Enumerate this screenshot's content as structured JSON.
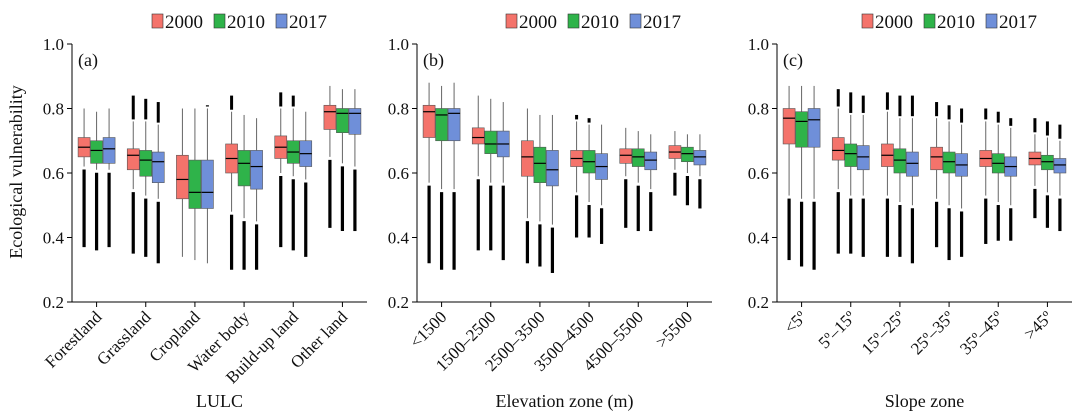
{
  "ylabel": "Ecological vulnerability",
  "colors": {
    "2000": "#f4736b",
    "2010": "#2fb34a",
    "2017": "#6f8fd9"
  },
  "chart_data": [
    {
      "type": "box",
      "panel_label": "(a)",
      "xlabel": "LULC",
      "ylabel": "Ecological vulnerability",
      "ylim": [
        0.2,
        1.0
      ],
      "yticks": [
        "0.2",
        "0.4",
        "0.6",
        "0.8",
        "1.0"
      ],
      "legend": [
        "2000",
        "2010",
        "2017"
      ],
      "legend_position": "top",
      "categories": [
        "Forestland",
        "Grassland",
        "Cropland",
        "Water body",
        "Build-up land",
        "Other land"
      ],
      "series": [
        {
          "name": "2000",
          "boxes": [
            {
              "whislo": 0.62,
              "q1": 0.65,
              "med": 0.68,
              "q3": 0.71,
              "whishi": 0.8,
              "outlier_lo": 0.37,
              "outlier_hi": null
            },
            {
              "whislo": 0.55,
              "q1": 0.61,
              "med": 0.655,
              "q3": 0.675,
              "whishi": 0.76,
              "outlier_lo": 0.35,
              "outlier_hi": 0.84
            },
            {
              "whislo": 0.34,
              "q1": 0.52,
              "med": 0.58,
              "q3": 0.655,
              "whishi": 0.8,
              "outlier_lo": null,
              "outlier_hi": null
            },
            {
              "whislo": 0.48,
              "q1": 0.6,
              "med": 0.645,
              "q3": 0.69,
              "whishi": 0.79,
              "outlier_lo": 0.3,
              "outlier_hi": 0.84
            },
            {
              "whislo": 0.6,
              "q1": 0.645,
              "med": 0.68,
              "q3": 0.715,
              "whishi": 0.8,
              "outlier_lo": 0.37,
              "outlier_hi": 0.85
            },
            {
              "whislo": 0.65,
              "q1": 0.735,
              "med": 0.79,
              "q3": 0.81,
              "whishi": 0.87,
              "outlier_lo": 0.43,
              "outlier_hi": null
            }
          ]
        },
        {
          "name": "2010",
          "boxes": [
            {
              "whislo": 0.61,
              "q1": 0.63,
              "med": 0.67,
              "q3": 0.7,
              "whishi": 0.79,
              "outlier_lo": 0.36,
              "outlier_hi": null
            },
            {
              "whislo": 0.53,
              "q1": 0.59,
              "med": 0.64,
              "q3": 0.67,
              "whishi": 0.76,
              "outlier_lo": 0.34,
              "outlier_hi": 0.83
            },
            {
              "whislo": 0.33,
              "q1": 0.49,
              "med": 0.54,
              "q3": 0.64,
              "whishi": 0.8,
              "outlier_lo": null,
              "outlier_hi": null
            },
            {
              "whislo": 0.46,
              "q1": 0.56,
              "med": 0.63,
              "q3": 0.67,
              "whishi": 0.78,
              "outlier_lo": 0.3,
              "outlier_hi": null
            },
            {
              "whislo": 0.59,
              "q1": 0.63,
              "med": 0.665,
              "q3": 0.7,
              "whishi": 0.8,
              "outlier_lo": 0.36,
              "outlier_hi": 0.84
            },
            {
              "whislo": 0.63,
              "q1": 0.725,
              "med": 0.785,
              "q3": 0.8,
              "whishi": 0.86,
              "outlier_lo": 0.42,
              "outlier_hi": null
            }
          ]
        },
        {
          "name": "2017",
          "boxes": [
            {
              "whislo": 0.61,
              "q1": 0.63,
              "med": 0.675,
              "q3": 0.71,
              "whishi": 0.8,
              "outlier_lo": 0.37,
              "outlier_hi": null
            },
            {
              "whislo": 0.52,
              "q1": 0.57,
              "med": 0.635,
              "q3": 0.665,
              "whishi": 0.75,
              "outlier_lo": 0.32,
              "outlier_hi": 0.82
            },
            {
              "whislo": 0.32,
              "q1": 0.49,
              "med": 0.54,
              "q3": 0.64,
              "whishi": 0.8,
              "outlier_lo": null,
              "outlier_hi": 0.81
            },
            {
              "whislo": 0.45,
              "q1": 0.55,
              "med": 0.62,
              "q3": 0.67,
              "whishi": 0.77,
              "outlier_lo": 0.3,
              "outlier_hi": null
            },
            {
              "whislo": 0.58,
              "q1": 0.62,
              "med": 0.66,
              "q3": 0.7,
              "whishi": 0.79,
              "outlier_lo": 0.34,
              "outlier_hi": null
            },
            {
              "whislo": 0.62,
              "q1": 0.72,
              "med": 0.785,
              "q3": 0.8,
              "whishi": 0.86,
              "outlier_lo": 0.42,
              "outlier_hi": null
            }
          ]
        }
      ]
    },
    {
      "type": "box",
      "panel_label": "(b)",
      "xlabel": "Elevation zone (m)",
      "ylabel": "",
      "ylim": [
        0.2,
        1.0
      ],
      "yticks": [
        "0.2",
        "0.4",
        "0.6",
        "0.8",
        "1.0"
      ],
      "legend": [
        "2000",
        "2010",
        "2017"
      ],
      "legend_position": "top",
      "categories": [
        "<1500",
        "1500–2500",
        "2500–3500",
        "3500–4500",
        "4500–5500",
        ">5500"
      ],
      "series": [
        {
          "name": "2000",
          "boxes": [
            {
              "whislo": 0.57,
              "q1": 0.71,
              "med": 0.79,
              "q3": 0.81,
              "whishi": 0.88,
              "outlier_lo": 0.32,
              "outlier_hi": null
            },
            {
              "whislo": 0.59,
              "q1": 0.69,
              "med": 0.71,
              "q3": 0.74,
              "whishi": 0.84,
              "outlier_lo": 0.36,
              "outlier_hi": null
            },
            {
              "whislo": 0.46,
              "q1": 0.59,
              "med": 0.65,
              "q3": 0.7,
              "whishi": 0.8,
              "outlier_lo": 0.32,
              "outlier_hi": null
            },
            {
              "whislo": 0.54,
              "q1": 0.62,
              "med": 0.645,
              "q3": 0.67,
              "whishi": 0.76,
              "outlier_lo": 0.4,
              "outlier_hi": 0.78
            },
            {
              "whislo": 0.59,
              "q1": 0.63,
              "med": 0.655,
              "q3": 0.675,
              "whishi": 0.74,
              "outlier_lo": 0.43,
              "outlier_hi": null
            },
            {
              "whislo": 0.61,
              "q1": 0.645,
              "med": 0.665,
              "q3": 0.685,
              "whishi": 0.73,
              "outlier_lo": 0.53,
              "outlier_hi": null
            }
          ]
        },
        {
          "name": "2010",
          "boxes": [
            {
              "whislo": 0.55,
              "q1": 0.7,
              "med": 0.78,
              "q3": 0.8,
              "whishi": 0.87,
              "outlier_lo": 0.3,
              "outlier_hi": null
            },
            {
              "whislo": 0.57,
              "q1": 0.66,
              "med": 0.69,
              "q3": 0.73,
              "whishi": 0.83,
              "outlier_lo": 0.36,
              "outlier_hi": null
            },
            {
              "whislo": 0.45,
              "q1": 0.57,
              "med": 0.63,
              "q3": 0.68,
              "whishi": 0.78,
              "outlier_lo": 0.31,
              "outlier_hi": null
            },
            {
              "whislo": 0.51,
              "q1": 0.6,
              "med": 0.635,
              "q3": 0.67,
              "whishi": 0.75,
              "outlier_lo": 0.4,
              "outlier_hi": 0.77
            },
            {
              "whislo": 0.57,
              "q1": 0.62,
              "med": 0.65,
              "q3": 0.675,
              "whishi": 0.73,
              "outlier_lo": 0.42,
              "outlier_hi": null
            },
            {
              "whislo": 0.6,
              "q1": 0.635,
              "med": 0.66,
              "q3": 0.68,
              "whishi": 0.72,
              "outlier_lo": 0.5,
              "outlier_hi": null
            }
          ]
        },
        {
          "name": "2017",
          "boxes": [
            {
              "whislo": 0.55,
              "q1": 0.7,
              "med": 0.785,
              "q3": 0.8,
              "whishi": 0.88,
              "outlier_lo": 0.3,
              "outlier_hi": null
            },
            {
              "whislo": 0.57,
              "q1": 0.65,
              "med": 0.69,
              "q3": 0.73,
              "whishi": 0.82,
              "outlier_lo": 0.33,
              "outlier_hi": null
            },
            {
              "whislo": 0.44,
              "q1": 0.56,
              "med": 0.61,
              "q3": 0.67,
              "whishi": 0.78,
              "outlier_lo": 0.29,
              "outlier_hi": null
            },
            {
              "whislo": 0.5,
              "q1": 0.58,
              "med": 0.62,
              "q3": 0.66,
              "whishi": 0.75,
              "outlier_lo": 0.38,
              "outlier_hi": null
            },
            {
              "whislo": 0.55,
              "q1": 0.61,
              "med": 0.64,
              "q3": 0.665,
              "whishi": 0.72,
              "outlier_lo": 0.42,
              "outlier_hi": null
            },
            {
              "whislo": 0.59,
              "q1": 0.625,
              "med": 0.65,
              "q3": 0.67,
              "whishi": 0.72,
              "outlier_lo": 0.49,
              "outlier_hi": null
            }
          ]
        }
      ]
    },
    {
      "type": "box",
      "panel_label": "(c)",
      "xlabel": "Slope zone",
      "ylabel": "",
      "ylim": [
        0.2,
        1.0
      ],
      "yticks": [
        "0.2",
        "0.4",
        "0.6",
        "0.8",
        "1.0"
      ],
      "legend": [
        "2000",
        "2010",
        "2017"
      ],
      "legend_position": "top",
      "categories": [
        "<5º",
        "5º–15º",
        "15º–25º",
        "25º–35º",
        "35º–45º",
        ">45º"
      ],
      "series": [
        {
          "name": "2000",
          "boxes": [
            {
              "whislo": 0.53,
              "q1": 0.69,
              "med": 0.77,
              "q3": 0.8,
              "whishi": 0.87,
              "outlier_lo": 0.33,
              "outlier_hi": null
            },
            {
              "whislo": 0.55,
              "q1": 0.64,
              "med": 0.67,
              "q3": 0.71,
              "whishi": 0.8,
              "outlier_lo": 0.35,
              "outlier_hi": 0.86
            },
            {
              "whislo": 0.53,
              "q1": 0.62,
              "med": 0.655,
              "q3": 0.69,
              "whishi": 0.79,
              "outlier_lo": 0.34,
              "outlier_hi": 0.85
            },
            {
              "whislo": 0.52,
              "q1": 0.61,
              "med": 0.65,
              "q3": 0.68,
              "whishi": 0.77,
              "outlier_lo": 0.37,
              "outlier_hi": 0.82
            },
            {
              "whislo": 0.53,
              "q1": 0.62,
              "med": 0.645,
              "q3": 0.67,
              "whishi": 0.76,
              "outlier_lo": 0.38,
              "outlier_hi": 0.8
            },
            {
              "whislo": 0.56,
              "q1": 0.625,
              "med": 0.645,
              "q3": 0.665,
              "whishi": 0.72,
              "outlier_lo": 0.46,
              "outlier_hi": 0.77
            }
          ]
        },
        {
          "name": "2010",
          "boxes": [
            {
              "whislo": 0.52,
              "q1": 0.68,
              "med": 0.76,
              "q3": 0.79,
              "whishi": 0.87,
              "outlier_lo": 0.31,
              "outlier_hi": null
            },
            {
              "whislo": 0.53,
              "q1": 0.62,
              "med": 0.66,
              "q3": 0.69,
              "whishi": 0.78,
              "outlier_lo": 0.35,
              "outlier_hi": 0.85
            },
            {
              "whislo": 0.51,
              "q1": 0.6,
              "med": 0.64,
              "q3": 0.675,
              "whishi": 0.77,
              "outlier_lo": 0.34,
              "outlier_hi": 0.84
            },
            {
              "whislo": 0.5,
              "q1": 0.6,
              "med": 0.635,
              "q3": 0.665,
              "whishi": 0.76,
              "outlier_lo": 0.33,
              "outlier_hi": 0.81
            },
            {
              "whislo": 0.51,
              "q1": 0.6,
              "med": 0.63,
              "q3": 0.66,
              "whishi": 0.75,
              "outlier_lo": 0.39,
              "outlier_hi": 0.79
            },
            {
              "whislo": 0.54,
              "q1": 0.61,
              "med": 0.635,
              "q3": 0.655,
              "whishi": 0.71,
              "outlier_lo": 0.43,
              "outlier_hi": 0.76
            }
          ]
        },
        {
          "name": "2017",
          "boxes": [
            {
              "whislo": 0.52,
              "q1": 0.68,
              "med": 0.765,
              "q3": 0.8,
              "whishi": 0.87,
              "outlier_lo": 0.3,
              "outlier_hi": null
            },
            {
              "whislo": 0.53,
              "q1": 0.61,
              "med": 0.65,
              "q3": 0.685,
              "whishi": 0.78,
              "outlier_lo": 0.34,
              "outlier_hi": 0.84
            },
            {
              "whislo": 0.5,
              "q1": 0.59,
              "med": 0.63,
              "q3": 0.665,
              "whishi": 0.77,
              "outlier_lo": 0.32,
              "outlier_hi": 0.84
            },
            {
              "whislo": 0.49,
              "q1": 0.59,
              "med": 0.625,
              "q3": 0.66,
              "whishi": 0.75,
              "outlier_lo": 0.34,
              "outlier_hi": 0.8
            },
            {
              "whislo": 0.5,
              "q1": 0.59,
              "med": 0.62,
              "q3": 0.65,
              "whishi": 0.74,
              "outlier_lo": 0.39,
              "outlier_hi": 0.77
            },
            {
              "whislo": 0.53,
              "q1": 0.6,
              "med": 0.625,
              "q3": 0.645,
              "whishi": 0.7,
              "outlier_lo": 0.42,
              "outlier_hi": 0.75
            }
          ]
        }
      ]
    }
  ]
}
